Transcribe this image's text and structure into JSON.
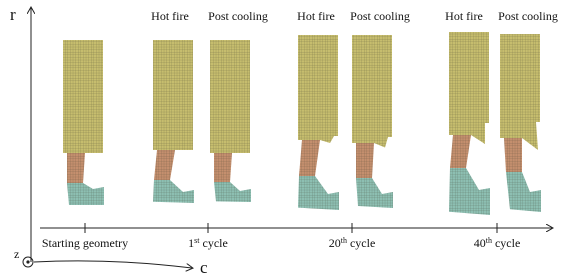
{
  "axes": {
    "r": "r",
    "z": "z",
    "c": "c"
  },
  "columns": [
    {
      "label": "Hot fire"
    },
    {
      "label": "Post cooling"
    },
    {
      "label": "Hot fire"
    },
    {
      "label": "Post cooling"
    },
    {
      "label": "Hot fire"
    },
    {
      "label": "Post cooling"
    }
  ],
  "timeline": [
    {
      "text": "Starting geometry"
    },
    {
      "number": "1",
      "suffix": "st",
      "text": "cycle"
    },
    {
      "number": "20",
      "suffix": "th",
      "text": "cycle"
    },
    {
      "number": "40",
      "suffix": "th",
      "text": "cycle"
    }
  ]
}
